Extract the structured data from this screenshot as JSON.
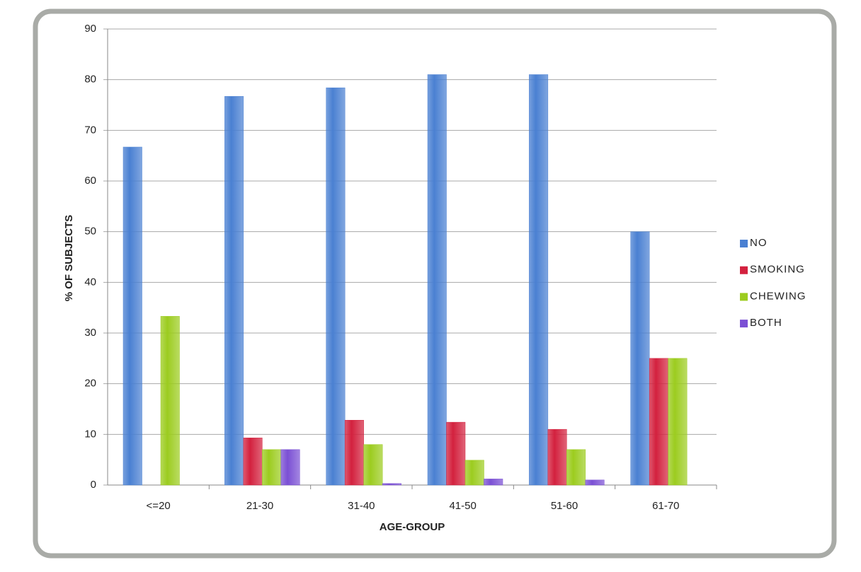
{
  "chart_data": {
    "type": "bar",
    "x_label": "AGE-GROUP",
    "y_label": "% OF SUBJECTS",
    "categories": [
      "<=20",
      "21-30",
      "31-40",
      "41-50",
      "51-60",
      "61-70"
    ],
    "series": [
      {
        "name": "NO",
        "color": "#4a80d2",
        "values": [
          66.7,
          76.7,
          78.4,
          81,
          81,
          50
        ]
      },
      {
        "name": "SMOKING",
        "color": "#d3213e",
        "values": [
          0,
          9.3,
          12.8,
          12.4,
          11,
          25
        ]
      },
      {
        "name": "CHEWING",
        "color": "#9ccc1f",
        "values": [
          33.3,
          7,
          8,
          4.9,
          7,
          25
        ]
      },
      {
        "name": "BOTH",
        "color": "#7b50d4",
        "values": [
          0,
          7,
          0.3,
          1.2,
          1,
          0
        ]
      }
    ],
    "ylim": [
      0,
      90
    ],
    "yticks": [
      0,
      10,
      20,
      30,
      40,
      50,
      60,
      70,
      80,
      90
    ],
    "grid": true,
    "legend": "right"
  }
}
